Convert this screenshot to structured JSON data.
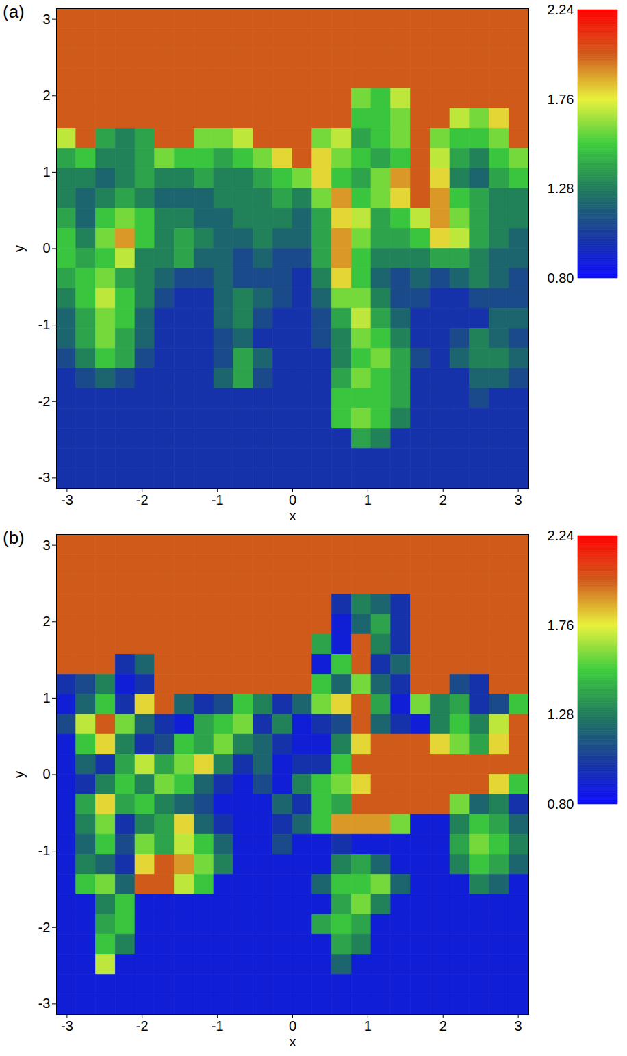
{
  "chart_data": [
    {
      "type": "heatmap",
      "title": "(a)",
      "x_label": "x",
      "y_label": "y",
      "xlim": [
        -3.14,
        3.14
      ],
      "ylim": [
        -3.14,
        3.14
      ],
      "xticks": [
        -3,
        -2,
        -1,
        0,
        1,
        2,
        3
      ],
      "yticks": [
        -3,
        -2,
        -1,
        0,
        1,
        2,
        3
      ],
      "cells": [
        [
          2,
          2,
          2,
          2,
          2,
          2,
          2,
          2,
          2,
          2,
          2,
          2,
          2,
          2,
          2,
          2,
          2,
          2,
          2,
          2,
          2,
          2,
          2,
          2
        ],
        [
          2,
          2,
          2,
          2,
          2,
          2,
          2,
          2,
          2,
          2,
          2,
          2,
          2,
          2,
          2,
          2,
          2,
          2,
          2,
          2,
          2,
          2,
          2,
          2
        ],
        [
          2,
          2,
          2,
          2,
          2,
          2,
          2,
          2,
          2,
          2,
          2,
          2,
          2,
          2,
          2,
          2,
          2,
          2,
          2,
          2,
          2,
          2,
          2,
          2
        ],
        [
          2,
          2,
          2,
          2,
          2,
          2,
          2,
          2,
          2,
          2,
          2,
          2,
          2,
          2,
          2,
          2,
          2,
          2,
          2,
          2,
          2,
          2,
          2,
          2
        ],
        [
          2,
          2,
          2,
          2,
          2,
          2,
          2,
          2,
          2,
          2,
          2,
          2,
          2,
          2,
          2,
          1.6,
          1.5,
          1.7,
          2,
          2,
          2,
          2,
          2,
          2
        ],
        [
          2,
          2,
          2,
          2,
          2,
          2,
          2,
          2,
          2,
          2,
          2,
          2,
          2,
          2,
          2,
          1.5,
          1.5,
          1.6,
          2,
          2,
          1.7,
          1.6,
          1.8,
          2
        ],
        [
          1.7,
          2,
          1.4,
          1.3,
          1.4,
          2,
          2,
          1.6,
          1.6,
          1.7,
          2,
          2,
          2,
          1.6,
          1.7,
          1.4,
          1.5,
          1.6,
          2,
          1.6,
          1.5,
          1.5,
          1.6,
          2
        ],
        [
          1.4,
          1.5,
          1.3,
          1.3,
          1.4,
          1.6,
          1.5,
          1.5,
          1.4,
          1.5,
          1.6,
          1.8,
          2,
          1.8,
          1.6,
          1.5,
          1.4,
          1.5,
          2,
          1.7,
          1.4,
          1.3,
          1.5,
          1.6
        ],
        [
          1.3,
          1.3,
          1.2,
          1.3,
          1.4,
          1.3,
          1.3,
          1.4,
          1.3,
          1.3,
          1.4,
          1.5,
          1.6,
          1.8,
          1.5,
          1.4,
          1.6,
          1.9,
          2,
          1.8,
          1.3,
          1.2,
          1.4,
          1.5
        ],
        [
          1.3,
          1.2,
          1.3,
          1.4,
          1.3,
          1.2,
          1.2,
          1.2,
          1.3,
          1.3,
          1.3,
          1.4,
          1.3,
          1.6,
          1.9,
          1.5,
          1.6,
          1.8,
          2,
          1.9,
          1.5,
          1.4,
          1.3,
          1.3
        ],
        [
          1.4,
          1.2,
          1.5,
          1.6,
          1.5,
          1.3,
          1.3,
          1.2,
          1.2,
          1.3,
          1.3,
          1.3,
          1.2,
          1.4,
          1.8,
          1.7,
          1.4,
          1.5,
          1.7,
          1.9,
          1.6,
          1.4,
          1.3,
          1.3
        ],
        [
          1.5,
          1.3,
          1.6,
          1.9,
          1.5,
          1.3,
          1.4,
          1.3,
          1.2,
          1.2,
          1.3,
          1.2,
          1.2,
          1.4,
          1.9,
          1.6,
          1.4,
          1.4,
          1.5,
          1.8,
          1.7,
          1.4,
          1.3,
          1.2
        ],
        [
          1.5,
          1.4,
          1.5,
          1.7,
          1.3,
          1.3,
          1.4,
          1.2,
          1.2,
          1.1,
          1.2,
          1.1,
          1.1,
          1.4,
          1.9,
          1.5,
          1.3,
          1.3,
          1.3,
          1.4,
          1.4,
          1.3,
          1.2,
          1.2
        ],
        [
          1.4,
          1.5,
          1.6,
          1.4,
          1.3,
          1.2,
          1.1,
          1.1,
          1.2,
          1.1,
          1.1,
          1.1,
          1,
          1.3,
          1.8,
          1.5,
          1.2,
          1.1,
          1.2,
          1.1,
          1.2,
          1.3,
          1.2,
          1.1
        ],
        [
          1.3,
          1.5,
          1.7,
          1.5,
          1.3,
          1.1,
          1,
          1,
          1.2,
          1.3,
          1.2,
          1.1,
          1,
          1.2,
          1.6,
          1.6,
          1.3,
          1.1,
          1.1,
          1,
          1,
          1.1,
          1.1,
          1.1
        ],
        [
          1.2,
          1.4,
          1.6,
          1.5,
          1.2,
          1,
          1,
          1,
          1.2,
          1.3,
          1.1,
          1,
          1,
          1.1,
          1.4,
          1.7,
          1.4,
          1.2,
          1,
          1,
          1,
          1,
          1.2,
          1.2
        ],
        [
          1.2,
          1.4,
          1.6,
          1.4,
          1.2,
          1,
          1,
          1,
          1.1,
          1.2,
          1,
          1,
          1,
          1.1,
          1.3,
          1.6,
          1.5,
          1.3,
          1,
          1,
          1.1,
          1.3,
          1.2,
          1.1
        ],
        [
          1.1,
          1.3,
          1.5,
          1.4,
          1.1,
          1,
          1,
          1,
          1.1,
          1.4,
          1.2,
          1,
          1,
          1,
          1.3,
          1.5,
          1.6,
          1.4,
          1.1,
          1,
          1.2,
          1.3,
          1.3,
          1.2
        ],
        [
          1,
          1.1,
          1.2,
          1.1,
          1,
          1,
          1,
          1,
          1.2,
          1.4,
          1.1,
          1,
          1,
          1,
          1.4,
          1.6,
          1.5,
          1.4,
          1,
          1,
          1,
          1.2,
          1.2,
          1.1
        ],
        [
          1,
          1,
          1,
          1,
          1,
          1,
          1,
          1,
          1,
          1,
          1,
          1,
          1,
          1,
          1.5,
          1.5,
          1.5,
          1.4,
          1,
          1,
          1,
          1.1,
          1,
          1
        ],
        [
          1,
          1,
          1,
          1,
          1,
          1,
          1,
          1,
          1,
          1,
          1,
          1,
          1,
          1,
          1.5,
          1.6,
          1.5,
          1.3,
          1,
          1,
          1,
          1,
          1,
          1
        ],
        [
          1,
          1,
          1,
          1,
          1,
          1,
          1,
          1,
          1,
          1,
          1,
          1,
          1,
          1,
          1,
          1.4,
          1.3,
          1,
          1,
          1,
          1,
          1,
          1,
          1
        ],
        [
          1,
          1,
          1,
          1,
          1,
          1,
          1,
          1,
          1,
          1,
          1,
          1,
          1,
          1,
          1,
          1,
          1,
          1,
          1,
          1,
          1,
          1,
          1,
          1
        ],
        [
          1,
          1,
          1,
          1,
          1,
          1,
          1,
          1,
          1,
          1,
          1,
          1,
          1,
          1,
          1,
          1,
          1,
          1,
          1,
          1,
          1,
          1,
          1,
          1
        ]
      ],
      "colorbar": {
        "range": [
          0.8,
          2.24
        ],
        "ticks": [
          {
            "value": 0.8,
            "label": "0.80"
          },
          1.28,
          1.76,
          2.24
        ],
        "colors": [
          "#0a0aff",
          "#183a9a",
          "#1e7a5a",
          "#3ccc3c",
          "#e8f03a",
          "#d05a1a",
          "#ff0000"
        ]
      }
    },
    {
      "type": "heatmap",
      "title": "(b)",
      "x_label": "x",
      "y_label": "y",
      "xlim": [
        -3.14,
        3.14
      ],
      "ylim": [
        -3.14,
        3.14
      ],
      "xticks": [
        -3,
        -2,
        -1,
        0,
        1,
        2,
        3
      ],
      "yticks": [
        -3,
        -2,
        -1,
        0,
        1,
        2,
        3
      ],
      "cells": [
        [
          2,
          2,
          2,
          2,
          2,
          2,
          2,
          2,
          2,
          2,
          2,
          2,
          2,
          2,
          2,
          2,
          2,
          2,
          2,
          2,
          2,
          2,
          2,
          2
        ],
        [
          2,
          2,
          2,
          2,
          2,
          2,
          2,
          2,
          2,
          2,
          2,
          2,
          2,
          2,
          2,
          2,
          2,
          2,
          2,
          2,
          2,
          2,
          2,
          2
        ],
        [
          2,
          2,
          2,
          2,
          2,
          2,
          2,
          2,
          2,
          2,
          2,
          2,
          2,
          2,
          2,
          2,
          2,
          2,
          2,
          2,
          2,
          2,
          2,
          2
        ],
        [
          2,
          2,
          2,
          2,
          2,
          2,
          2,
          2,
          2,
          2,
          2,
          2,
          2,
          2,
          1,
          1.3,
          1.2,
          1,
          2,
          2,
          2,
          2,
          2,
          2
        ],
        [
          2,
          2,
          2,
          2,
          2,
          2,
          2,
          2,
          2,
          2,
          2,
          2,
          2,
          2,
          0.9,
          1.2,
          1.4,
          1,
          2,
          2,
          2,
          2,
          2,
          2
        ],
        [
          2,
          2,
          2,
          2,
          2,
          2,
          2,
          2,
          2,
          2,
          2,
          2,
          2,
          1.4,
          0.9,
          2,
          1.3,
          1,
          2,
          2,
          2,
          2,
          2,
          2
        ],
        [
          2,
          2,
          2,
          1,
          1.2,
          2,
          2,
          2,
          2,
          2,
          2,
          2,
          2,
          0.9,
          1.5,
          2,
          1,
          1.2,
          2,
          2,
          2,
          2,
          2,
          2
        ],
        [
          1,
          1.1,
          1.3,
          0.9,
          1,
          2,
          2,
          2,
          2,
          2,
          2,
          2,
          2,
          1.5,
          1.2,
          1.6,
          1.2,
          1,
          2,
          2,
          1.1,
          1,
          2,
          2
        ],
        [
          0.9,
          1.2,
          1.5,
          1,
          1.8,
          2,
          1.2,
          1,
          1.1,
          1.5,
          1.3,
          1,
          1.2,
          1.6,
          1.8,
          2,
          1.4,
          0.9,
          1.6,
          1.3,
          1.4,
          1,
          1.1,
          1.5
        ],
        [
          1.1,
          1.7,
          2,
          1.6,
          1.2,
          1,
          0.9,
          1.4,
          1.5,
          1.6,
          1,
          1.3,
          0.9,
          1,
          1.1,
          2,
          1.2,
          1,
          0.9,
          1.3,
          1.5,
          1.3,
          1.7,
          2
        ],
        [
          0.9,
          1.5,
          1.8,
          1.3,
          1,
          1.1,
          1.5,
          1.4,
          1.6,
          1.3,
          1.2,
          1,
          0.9,
          0.9,
          1.3,
          1.8,
          2,
          2,
          2,
          1.8,
          1.6,
          1.4,
          1.8,
          2
        ],
        [
          0.9,
          1.2,
          1,
          1.4,
          1.7,
          1.4,
          1.6,
          1.8,
          1.3,
          1,
          1.2,
          0.9,
          1,
          1,
          1.5,
          2,
          2,
          2,
          2,
          2,
          2,
          2,
          2,
          2
        ],
        [
          0.9,
          1,
          1.3,
          1.5,
          1.3,
          1.6,
          1.5,
          1.2,
          1,
          0.9,
          1.1,
          0.9,
          1.3,
          1.5,
          1.6,
          1.8,
          2,
          2,
          2,
          2,
          2,
          2,
          1.8,
          1.5
        ],
        [
          0.9,
          1.4,
          1.8,
          1.4,
          1.5,
          1.3,
          1.2,
          1.1,
          0.9,
          0.9,
          0.9,
          1.2,
          1,
          1.5,
          1.4,
          2,
          2,
          2,
          2,
          2,
          1.6,
          1.2,
          1.3,
          1
        ],
        [
          0.9,
          1.3,
          1.6,
          1,
          1.3,
          1.4,
          1.8,
          1.2,
          1,
          0.9,
          0.9,
          1,
          1.2,
          1.5,
          1.9,
          1.9,
          1.9,
          1.6,
          0.9,
          0.9,
          1.3,
          1.5,
          1.4,
          1.2
        ],
        [
          0.9,
          1.2,
          1.5,
          1.1,
          1.6,
          1.4,
          1.7,
          1.5,
          1.2,
          0.9,
          0.9,
          1.1,
          0.9,
          0.9,
          1,
          0.9,
          0.9,
          0.9,
          0.9,
          0.9,
          1.4,
          1.6,
          1.5,
          1.3
        ],
        [
          0.9,
          1.3,
          1.2,
          1,
          1.8,
          2,
          1.9,
          1.6,
          1.3,
          0.9,
          0.9,
          0.9,
          0.9,
          0.9,
          1.3,
          1.4,
          1.2,
          0.9,
          0.9,
          0.9,
          1.3,
          1.5,
          1.4,
          1.2
        ],
        [
          0.9,
          1.5,
          1.6,
          1.2,
          2,
          2,
          1.7,
          1.5,
          0.9,
          0.9,
          0.9,
          0.9,
          0.9,
          1.2,
          1.5,
          1.5,
          1.6,
          1.2,
          0.9,
          0.9,
          0.9,
          1.3,
          1.2,
          0.9
        ],
        [
          0.9,
          0.9,
          1.3,
          1.5,
          0.9,
          0.9,
          0.9,
          0.9,
          0.9,
          0.9,
          0.9,
          0.9,
          0.9,
          0.9,
          1.4,
          1.6,
          1.3,
          0.9,
          0.9,
          0.9,
          0.9,
          0.9,
          0.9,
          0.9
        ],
        [
          0.9,
          0.9,
          1.4,
          1.5,
          0.9,
          0.9,
          0.9,
          0.9,
          0.9,
          0.9,
          0.9,
          0.9,
          0.9,
          1.4,
          1.5,
          1.4,
          0.9,
          0.9,
          0.9,
          0.9,
          0.9,
          0.9,
          0.9,
          0.9
        ],
        [
          0.9,
          0.9,
          1.5,
          1.3,
          0.9,
          0.9,
          0.9,
          0.9,
          0.9,
          0.9,
          0.9,
          0.9,
          0.9,
          0.9,
          1.4,
          1.3,
          0.9,
          0.9,
          0.9,
          0.9,
          0.9,
          0.9,
          0.9,
          0.9
        ],
        [
          0.9,
          0.9,
          1.7,
          0.9,
          0.9,
          0.9,
          0.9,
          0.9,
          0.9,
          0.9,
          0.9,
          0.9,
          0.9,
          0.9,
          1.2,
          0.9,
          0.9,
          0.9,
          0.9,
          0.9,
          0.9,
          0.9,
          0.9,
          0.9
        ],
        [
          0.9,
          0.9,
          0.9,
          0.9,
          0.9,
          0.9,
          0.9,
          0.9,
          0.9,
          0.9,
          0.9,
          0.9,
          0.9,
          0.9,
          0.9,
          0.9,
          0.9,
          0.9,
          0.9,
          0.9,
          0.9,
          0.9,
          0.9,
          0.9
        ],
        [
          0.9,
          0.9,
          0.9,
          0.9,
          0.9,
          0.9,
          0.9,
          0.9,
          0.9,
          0.9,
          0.9,
          0.9,
          0.9,
          0.9,
          0.9,
          0.9,
          0.9,
          0.9,
          0.9,
          0.9,
          0.9,
          0.9,
          0.9,
          0.9
        ]
      ],
      "colorbar": {
        "range": [
          0.8,
          2.24
        ],
        "ticks": [
          {
            "value": 0.8,
            "label": "0.80"
          },
          1.28,
          1.76,
          2.24
        ],
        "colors": [
          "#0a0aff",
          "#183a9a",
          "#1e7a5a",
          "#3ccc3c",
          "#e8f03a",
          "#d05a1a",
          "#ff0000"
        ]
      }
    }
  ]
}
